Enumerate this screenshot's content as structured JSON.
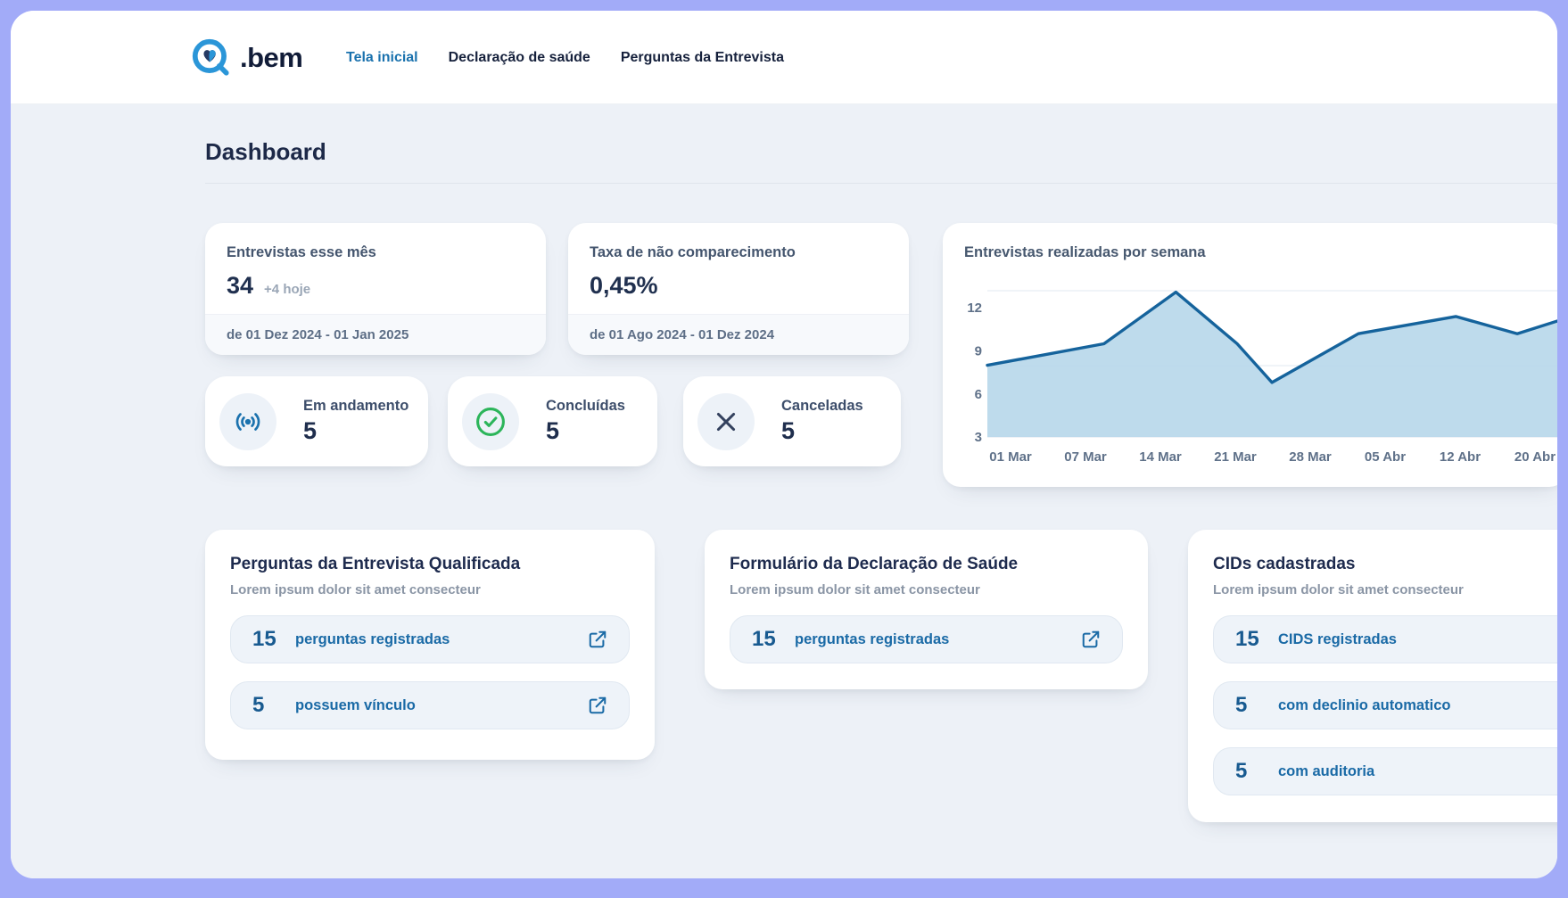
{
  "brand": {
    "name": ".bem"
  },
  "nav": {
    "items": [
      {
        "label": "Tela inicial",
        "active": true
      },
      {
        "label": "Declaração de saúde",
        "active": false
      },
      {
        "label": "Perguntas da Entrevista",
        "active": false
      }
    ]
  },
  "page": {
    "title": "Dashboard"
  },
  "stats": [
    {
      "title": "Entrevistas esse mês",
      "value": "34",
      "delta": "+4 hoje",
      "period": "de 01 Dez 2024 - 01 Jan 2025"
    },
    {
      "title": "Taxa de não comparecimento",
      "value": "0,45%",
      "period": "de 01 Ago 2024 - 01 Dez 2024"
    }
  ],
  "status_cards": [
    {
      "label": "Em andamento",
      "value": "5",
      "icon": "live-broadcast-icon",
      "color": "#1b72ae"
    },
    {
      "label": "Concluídas",
      "value": "5",
      "icon": "check-circle-icon",
      "color": "#2cb55a"
    },
    {
      "label": "Canceladas",
      "value": "5",
      "icon": "x-icon",
      "color": "#33415e"
    }
  ],
  "chart_data": {
    "type": "area",
    "title": "Entrevistas realizadas por semana",
    "x": [
      "01 Mar",
      "07 Mar",
      "14 Mar",
      "21 Mar",
      "28 Mar",
      "05 Abr",
      "12 Abr",
      "20 Abr"
    ],
    "values": [
      8,
      9.5,
      13,
      9.5,
      7,
      10,
      11.5,
      10.2
    ],
    "render_points": [
      [
        0.0,
        8
      ],
      [
        0.201,
        9.5
      ],
      [
        0.325,
        13.1
      ],
      [
        0.431,
        9.5
      ],
      [
        0.491,
        6.8
      ],
      [
        0.64,
        10.2
      ],
      [
        0.808,
        11.4
      ],
      [
        0.914,
        10.2
      ],
      [
        1.0,
        11.3
      ]
    ],
    "yticks": [
      3,
      6,
      9,
      12
    ],
    "ylim": [
      3,
      13.2
    ],
    "xlabel": "",
    "ylabel": "",
    "grid": "subtle horizontal gridlines",
    "legend": "none",
    "line_color": "#15639c",
    "fill_color": "#b9d8ea",
    "note": "area chart clipped at right edge of viewport, line still rising at cut"
  },
  "info_cards": [
    {
      "title": "Perguntas da Entrevista Qualificada",
      "subtitle": "Lorem ipsum dolor sit amet consecteur",
      "rows": [
        {
          "value": "15",
          "label": "perguntas registradas"
        },
        {
          "value": "5",
          "label": "possuem vínculo"
        }
      ]
    },
    {
      "title": "Formulário da Declaração de Saúde",
      "subtitle": "Lorem ipsum dolor sit amet consecteur",
      "rows": [
        {
          "value": "15",
          "label": "perguntas registradas"
        }
      ]
    },
    {
      "title": "CIDs cadastradas",
      "subtitle": "Lorem ipsum dolor sit amet consecteur",
      "rows": [
        {
          "value": "15",
          "label": "CIDS registradas"
        },
        {
          "value": "5",
          "label": "com declinio automatico"
        },
        {
          "value": "5",
          "label": "com auditoria"
        }
      ]
    }
  ],
  "colors": {
    "page_border": "#a2abf8",
    "main_background": "#edf1f7",
    "accent_blue": "#1b72ae",
    "navy": "#1f2e4d",
    "success_green": "#2cb55a",
    "chart_line": "#15639c",
    "chart_fill": "#b9d8ea",
    "row_text_blue": "#1a6aa6"
  }
}
